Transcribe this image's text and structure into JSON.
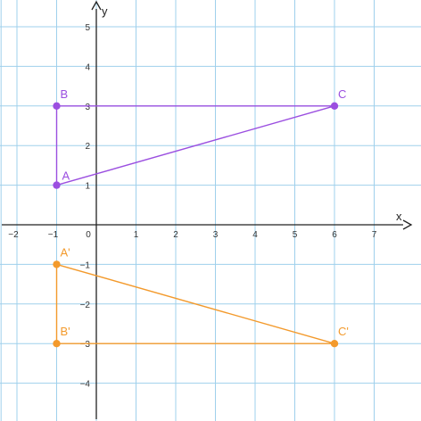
{
  "colors": {
    "grid": "#9fd0ec",
    "axis": "#222222",
    "triangle_original": "#9b4fe0",
    "triangle_image": "#f39a2c"
  },
  "chart_data": {
    "type": "scatter",
    "xlim": [
      -2.4,
      8
    ],
    "ylim": [
      -4.8,
      5.5
    ],
    "grid": true,
    "xlabel": "x",
    "ylabel": "y",
    "x_ticks": [
      "−2",
      "−1",
      "0",
      "1",
      "2",
      "3",
      "4",
      "5",
      "6",
      "7"
    ],
    "x_tick_values": [
      -2,
      -1,
      0,
      1,
      2,
      3,
      4,
      5,
      6,
      7
    ],
    "y_ticks": [
      "5",
      "4",
      "3",
      "2",
      "1",
      "−1",
      "−2",
      "−3",
      "−4"
    ],
    "y_tick_values": [
      5,
      4,
      3,
      2,
      1,
      -1,
      -2,
      -3,
      -4
    ],
    "series": [
      {
        "name": "ABC",
        "color": "#9b4fe0",
        "points": [
          {
            "label": "A",
            "x": -1,
            "y": 1
          },
          {
            "label": "B",
            "x": -1,
            "y": 3
          },
          {
            "label": "C",
            "x": 6,
            "y": 3
          }
        ]
      },
      {
        "name": "A'B'C'",
        "color": "#f39a2c",
        "points": [
          {
            "label": "A'",
            "x": -1,
            "y": -1
          },
          {
            "label": "B'",
            "x": -1,
            "y": -3
          },
          {
            "label": "C'",
            "x": 6,
            "y": -3
          }
        ]
      }
    ]
  }
}
